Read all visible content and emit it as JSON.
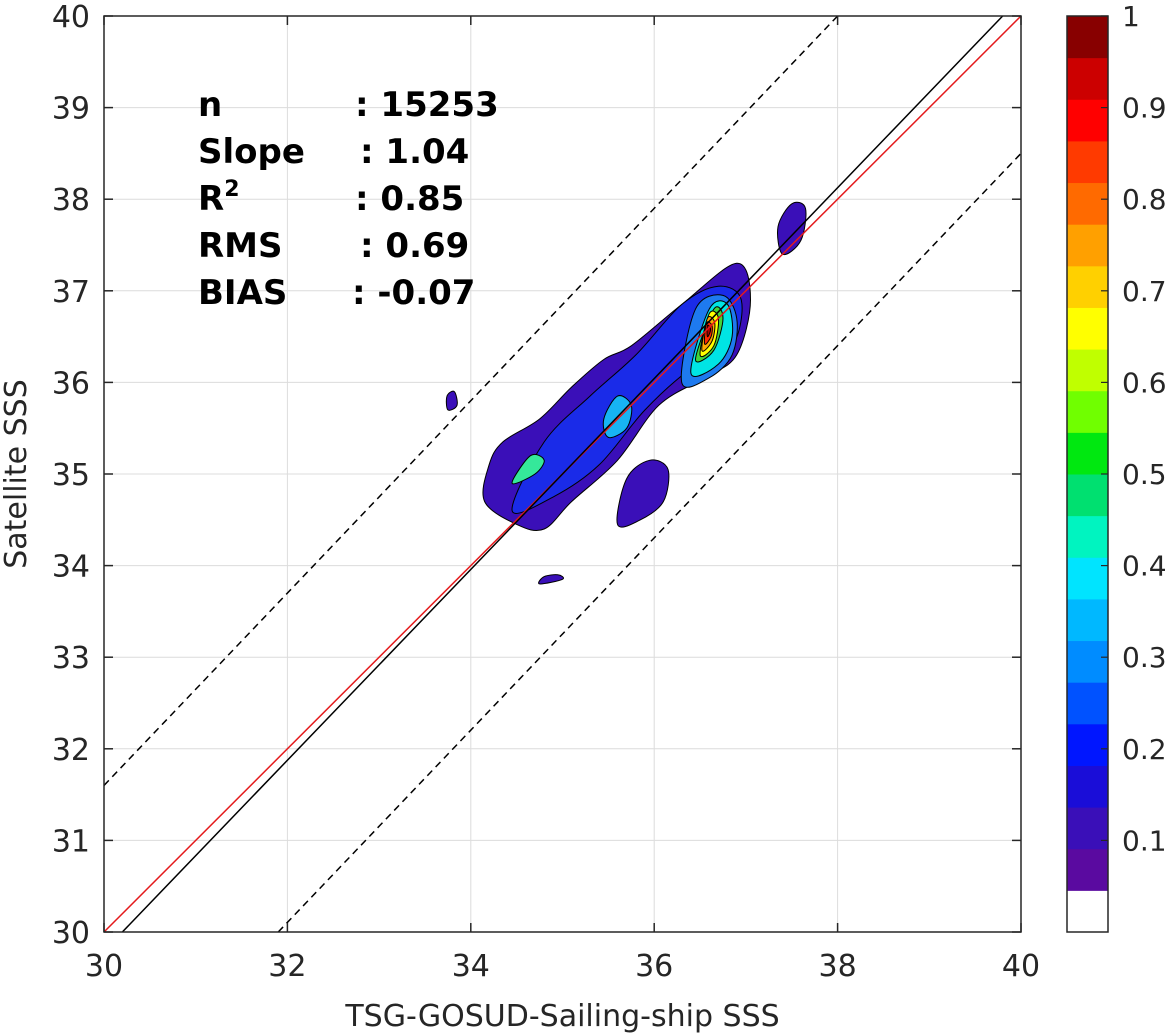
{
  "chart_data": {
    "type": "contour",
    "xlabel": "TSG-GOSUD-Sailing-ship SSS",
    "ylabel": "Satellite SSS",
    "xlim": [
      30,
      40
    ],
    "ylim": [
      30,
      40
    ],
    "xticks": [
      30,
      32,
      34,
      36,
      38,
      40
    ],
    "yticks": [
      30,
      31,
      32,
      33,
      34,
      35,
      36,
      37,
      38,
      39,
      40
    ],
    "grid": true,
    "stats": [
      {
        "name": "n",
        "sep": ": ",
        "value": "15253"
      },
      {
        "name": "Slope",
        "sep": ": ",
        "value": "1.04"
      },
      {
        "name": "R",
        "sup": "2",
        "sep": ": ",
        "value": "0.85"
      },
      {
        "name": "RMS",
        "sep": ": ",
        "value": "0.69"
      },
      {
        "name": "BIAS",
        "sep": ": ",
        "value": "-0.07"
      }
    ],
    "lines": [
      {
        "role": "one-to-one",
        "color": "#e41a1c",
        "style": "solid",
        "x": [
          30,
          40
        ],
        "y": [
          30,
          40
        ]
      },
      {
        "role": "regression",
        "color": "#000000",
        "style": "solid",
        "x": [
          30.2,
          39.8
        ],
        "y": [
          30,
          40
        ]
      },
      {
        "role": "upper-bound",
        "color": "#000000",
        "style": "dashed",
        "x": [
          30,
          38
        ],
        "y": [
          31.6,
          40
        ]
      },
      {
        "role": "lower-bound",
        "color": "#000000",
        "style": "dashed",
        "x": [
          31.9,
          40
        ],
        "y": [
          30,
          38.5
        ]
      }
    ],
    "contours": [
      {
        "level": 0.05,
        "color": "#3a0fb8",
        "x": [
          34.5,
          34.15,
          34.2,
          34.35,
          34.75,
          35.1,
          35.45,
          35.75,
          36.3,
          36.9,
          37.05,
          36.9,
          36.55,
          36.05,
          35.6,
          35.1,
          34.8,
          34.5
        ],
        "y": [
          34.45,
          34.7,
          35.1,
          35.35,
          35.6,
          35.95,
          36.25,
          36.4,
          36.85,
          37.3,
          36.9,
          36.3,
          36.05,
          35.75,
          35.15,
          34.7,
          34.4,
          34.45
        ]
      },
      {
        "level": 0.05,
        "color": "#3a0fb8",
        "x": [
          35.6,
          35.85,
          36.1,
          36.15,
          35.95,
          35.7,
          35.6
        ],
        "y": [
          34.45,
          34.5,
          34.7,
          35.05,
          35.15,
          34.95,
          34.45
        ]
      },
      {
        "level": 0.05,
        "color": "#3a0fb8",
        "x": [
          37.4,
          37.6,
          37.65,
          37.5,
          37.35,
          37.4
        ],
        "y": [
          37.4,
          37.55,
          37.9,
          37.95,
          37.7,
          37.4
        ]
      },
      {
        "level": 0.05,
        "color": "#3a0fb8",
        "x": [
          33.75,
          33.85,
          33.82,
          33.74,
          33.75
        ],
        "y": [
          35.7,
          35.75,
          35.9,
          35.85,
          35.7
        ]
      },
      {
        "level": 0.05,
        "color": "#3a0fb8",
        "x": [
          34.75,
          35.0,
          34.95,
          34.8,
          34.75
        ],
        "y": [
          33.8,
          33.85,
          33.9,
          33.88,
          33.8
        ]
      },
      {
        "level": 0.15,
        "color": "#1a2be8",
        "x": [
          34.45,
          34.9,
          35.4,
          35.9,
          36.4,
          36.85,
          36.95,
          36.7,
          36.3,
          35.8,
          35.3,
          34.8,
          34.45
        ],
        "y": [
          34.6,
          34.75,
          35.1,
          35.7,
          36.15,
          36.4,
          36.9,
          37.05,
          36.85,
          36.3,
          35.85,
          35.35,
          34.6
        ]
      },
      {
        "level": 0.25,
        "color": "#1e7aef",
        "x": [
          36.3,
          36.6,
          36.85,
          36.9,
          36.75,
          36.45,
          36.3
        ],
        "y": [
          36.0,
          36.05,
          36.3,
          36.7,
          36.95,
          36.8,
          36.0
        ]
      },
      {
        "level": 0.3,
        "color": "#17b4f3",
        "x": [
          35.5,
          35.7,
          35.75,
          35.6,
          35.45,
          35.5
        ],
        "y": [
          35.4,
          35.5,
          35.75,
          35.85,
          35.6,
          35.4
        ]
      },
      {
        "level": 0.35,
        "color": "#00e4e4",
        "x": [
          36.4,
          36.7,
          36.85,
          36.8,
          36.6,
          36.4
        ],
        "y": [
          36.1,
          36.2,
          36.5,
          36.85,
          36.8,
          36.1
        ]
      },
      {
        "level": 0.4,
        "color": "#35e89a",
        "x": [
          34.45,
          34.7,
          34.8,
          34.65,
          34.45
        ],
        "y": [
          34.9,
          35.0,
          35.15,
          35.2,
          34.9
        ]
      },
      {
        "level": 0.5,
        "color": "#43d43a",
        "x": [
          36.45,
          36.65,
          36.75,
          36.65,
          36.45
        ],
        "y": [
          36.25,
          36.35,
          36.7,
          36.8,
          36.25
        ]
      },
      {
        "level": 0.6,
        "color": "#ffff00",
        "x": [
          36.5,
          36.65,
          36.7,
          36.6,
          36.5
        ],
        "y": [
          36.3,
          36.4,
          36.7,
          36.75,
          36.3
        ]
      },
      {
        "level": 0.7,
        "color": "#ffaa00",
        "x": [
          36.52,
          36.63,
          36.66,
          36.58,
          36.52
        ],
        "y": [
          36.35,
          36.45,
          36.65,
          36.7,
          36.35
        ]
      },
      {
        "level": 0.85,
        "color": "#ff2a00",
        "x": [
          36.55,
          36.62,
          36.63,
          36.57,
          36.55
        ],
        "y": [
          36.42,
          36.5,
          36.62,
          36.65,
          36.42
        ]
      },
      {
        "level": 0.95,
        "color": "#aa0000",
        "x": [
          36.58,
          36.61,
          36.61,
          36.58,
          36.58
        ],
        "y": [
          36.5,
          36.55,
          36.6,
          36.62,
          36.5
        ]
      }
    ],
    "colorbar": {
      "ticks": [
        "0.1",
        "0.2",
        "0.3",
        "0.4",
        "0.5",
        "0.6",
        "0.7",
        "0.8",
        "0.9",
        "1"
      ],
      "tick_values": [
        0.1,
        0.2,
        0.3,
        0.4,
        0.5,
        0.6,
        0.7,
        0.8,
        0.9,
        1
      ],
      "range": [
        0,
        1
      ],
      "colors": [
        "#ffffff",
        "#5a0aa0",
        "#3a0fb8",
        "#1a0dd8",
        "#0016ff",
        "#0052ff",
        "#008cff",
        "#00b8ff",
        "#00e4ff",
        "#00f4c0",
        "#00e070",
        "#00e810",
        "#70ff00",
        "#c0ff00",
        "#ffff00",
        "#ffd000",
        "#ffa000",
        "#ff6a00",
        "#ff3a00",
        "#ff0000",
        "#cc0000",
        "#880000"
      ]
    }
  }
}
